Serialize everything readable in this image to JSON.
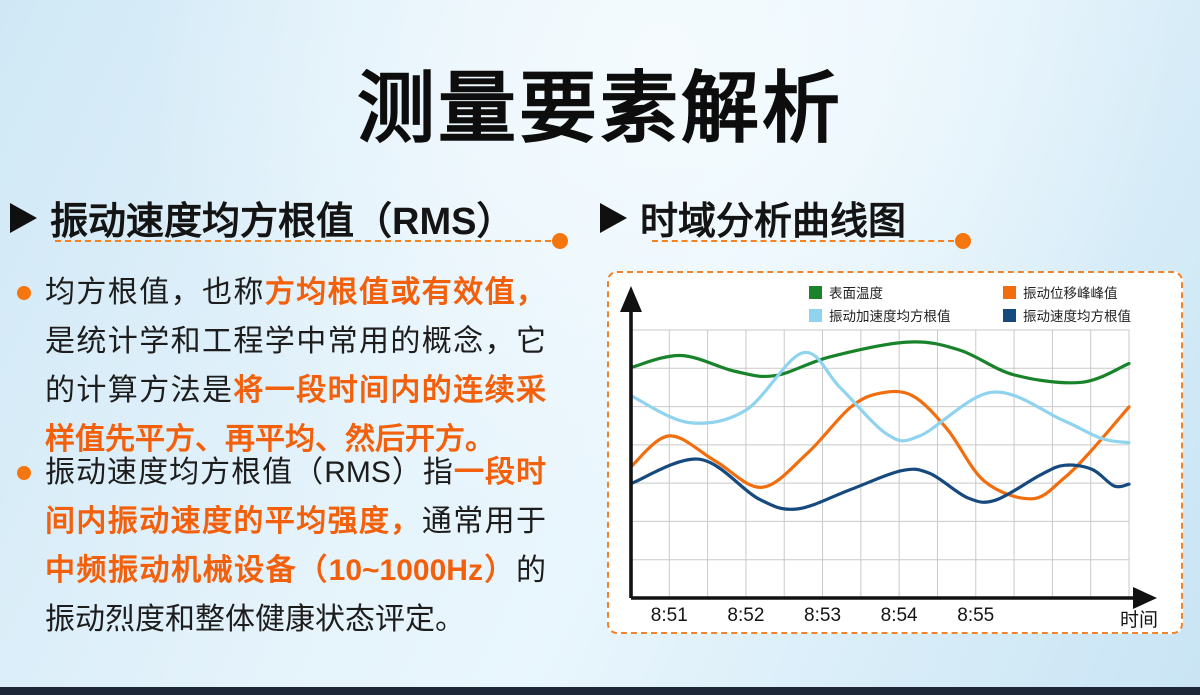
{
  "page": {
    "title": "测量要素解析"
  },
  "sections": {
    "left": {
      "title": "振动速度均方根值（RMS）",
      "bullets": [
        {
          "segments": [
            {
              "text": "均方根值，也称",
              "hl": false
            },
            {
              "text": "方均根值或有效值，",
              "hl": true
            },
            {
              "text": "是统计学和工程学中常用的概念，它的计算方法是",
              "hl": false
            },
            {
              "text": "将一段时间内的连续采样值先平方、再平均、然后开方。",
              "hl": true
            }
          ]
        },
        {
          "segments": [
            {
              "text": "振动速度均方根值（RMS）指",
              "hl": false
            },
            {
              "text": "一段时间内振动速度的平均强度，",
              "hl": true
            },
            {
              "text": "通常用于",
              "hl": false
            },
            {
              "text": "中频振动机械设备（10~1000Hz）",
              "hl": true
            },
            {
              "text": "的振动烈度和整体健康状态评定。",
              "hl": false
            }
          ]
        }
      ]
    },
    "right": {
      "title": "时域分析曲线图"
    }
  },
  "chart_data": {
    "type": "line",
    "title": "时域分析曲线图",
    "xlabel": "时间",
    "ylabel": "",
    "x_tick_labels": [
      "8:51",
      "8:52",
      "8:53",
      "8:54",
      "8:55"
    ],
    "grid": {
      "on": true,
      "cols": 13,
      "rows": 7
    },
    "legend_position": "top",
    "axis_color": "#111111",
    "grid_color": "#c9c9c9",
    "value_note": "unlabeled y-axis; values are relative amplitude 0-1, x normalized 0-1 over time window",
    "series": [
      {
        "name": "表面温度",
        "color": "#18832a",
        "points": [
          [
            0,
            0.86
          ],
          [
            0.1,
            0.905
          ],
          [
            0.21,
            0.845
          ],
          [
            0.29,
            0.83
          ],
          [
            0.4,
            0.9
          ],
          [
            0.555,
            0.955
          ],
          [
            0.66,
            0.925
          ],
          [
            0.77,
            0.832
          ],
          [
            0.905,
            0.805
          ],
          [
            1.0,
            0.875
          ]
        ]
      },
      {
        "name": "振动位移峰峰值",
        "color": "#f26d0d",
        "points": [
          [
            0,
            0.49
          ],
          [
            0.077,
            0.605
          ],
          [
            0.17,
            0.51
          ],
          [
            0.263,
            0.413
          ],
          [
            0.354,
            0.54
          ],
          [
            0.44,
            0.71
          ],
          [
            0.5,
            0.764
          ],
          [
            0.565,
            0.755
          ],
          [
            0.635,
            0.63
          ],
          [
            0.71,
            0.435
          ],
          [
            0.805,
            0.37
          ],
          [
            0.868,
            0.445
          ],
          [
            0.922,
            0.545
          ],
          [
            1.0,
            0.713
          ]
        ]
      },
      {
        "name": "振动加速度均方根值",
        "color": "#8fd3ef",
        "points": [
          [
            0,
            0.755
          ],
          [
            0.115,
            0.655
          ],
          [
            0.23,
            0.7
          ],
          [
            0.345,
            0.915
          ],
          [
            0.42,
            0.785
          ],
          [
            0.515,
            0.61
          ],
          [
            0.58,
            0.605
          ],
          [
            0.725,
            0.768
          ],
          [
            0.866,
            0.664
          ],
          [
            0.945,
            0.595
          ],
          [
            1.0,
            0.58
          ]
        ]
      },
      {
        "name": "振动速度均方根值",
        "color": "#164a7f",
        "points": [
          [
            0,
            0.427
          ],
          [
            0.137,
            0.518
          ],
          [
            0.256,
            0.37
          ],
          [
            0.333,
            0.332
          ],
          [
            0.44,
            0.404
          ],
          [
            0.543,
            0.475
          ],
          [
            0.6,
            0.465
          ],
          [
            0.676,
            0.374
          ],
          [
            0.732,
            0.365
          ],
          [
            0.823,
            0.46
          ],
          [
            0.87,
            0.495
          ],
          [
            0.926,
            0.48
          ],
          [
            0.97,
            0.418
          ],
          [
            1.0,
            0.425
          ]
        ]
      }
    ]
  }
}
